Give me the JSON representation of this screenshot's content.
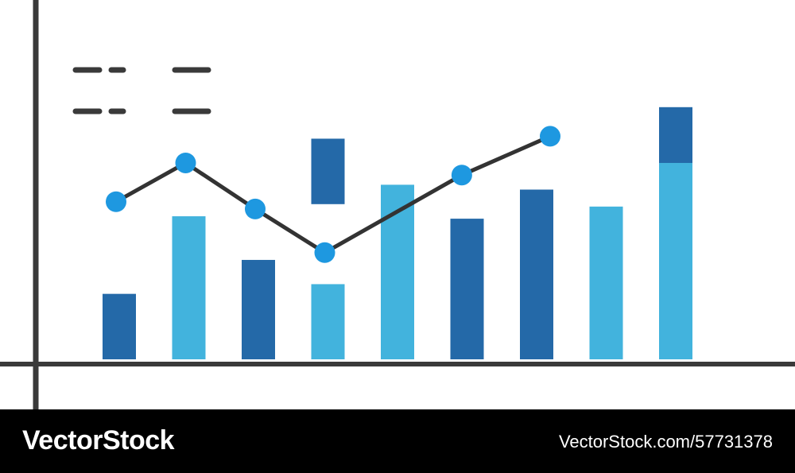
{
  "chart_data": {
    "type": "bar",
    "title": "",
    "xlabel": "",
    "ylabel": "",
    "ylim": [
      0,
      100
    ],
    "grid": false,
    "legend": "top-left (unreadable placeholder dashes)",
    "categories": [
      "",
      "",
      "",
      "",
      "",
      "",
      "",
      "",
      ""
    ],
    "bars": [
      {
        "value": 27,
        "color": "#2469a8"
      },
      {
        "value": 59,
        "color": "#42b3dd"
      },
      {
        "value": 41,
        "color": "#2469a8"
      },
      {
        "value": 31,
        "color": "#42b3dd"
      },
      {
        "value": 72,
        "color": "#42b3dd"
      },
      {
        "value": 58,
        "color": "#2469a8"
      },
      {
        "value": 70,
        "color": "#2469a8"
      },
      {
        "value": 63,
        "color": "#42b3dd"
      },
      {
        "value": 90,
        "color": "#42b3dd"
      }
    ],
    "floating_bars": [
      {
        "position": 3,
        "low": 64,
        "high": 91,
        "color": "#2469a8"
      },
      {
        "position": 8,
        "low": 81,
        "high": 104,
        "color": "#2469a8"
      }
    ],
    "line_series": {
      "x": [
        0,
        1,
        2,
        3,
        4.97,
        6.24
      ],
      "values": [
        65,
        81,
        62,
        44,
        76,
        92
      ],
      "line_color": "#333333",
      "marker_color": "#1e98e0"
    }
  },
  "watermark": {
    "brand": "VectorStock",
    "url": "VectorStock.com/57731378"
  },
  "colors": {
    "axis": "#3a3a3a",
    "band": "#000000"
  }
}
